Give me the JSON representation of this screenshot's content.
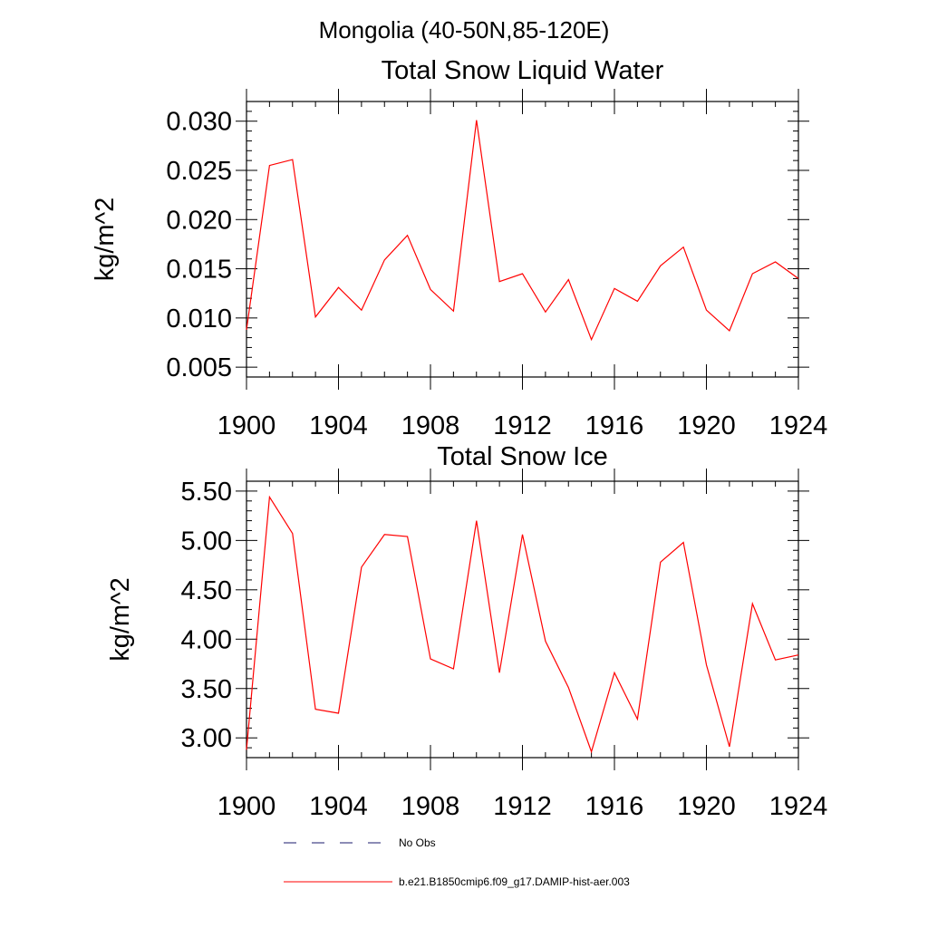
{
  "figure": {
    "title": "Mongolia (40-50N,85-120E)"
  },
  "colors": {
    "series": "#ff0000",
    "no_obs": "#1a1a6e",
    "axis": "#000000",
    "background": "#ffffff"
  },
  "legend": {
    "placement": "bottom",
    "items": [
      {
        "label": "No Obs",
        "style": "dashed"
      },
      {
        "label": "b.e21.B1850cmip6.f09_g17.DAMIP-hist-aer.003",
        "style": "solid"
      }
    ]
  },
  "chart_data": [
    {
      "type": "line",
      "title": "Total Snow Liquid Water",
      "xlabel": "",
      "ylabel": "kg/m^2",
      "xlim": [
        1900,
        1924
      ],
      "ylim": [
        0.004,
        0.032
      ],
      "grid": false,
      "xticks": [
        "1900",
        "1904",
        "1908",
        "1912",
        "1916",
        "1920",
        "1924"
      ],
      "yticks": [
        "0.005",
        "0.010",
        "0.015",
        "0.020",
        "0.025",
        "0.030"
      ],
      "series": [
        {
          "name": "b.e21.B1850cmip6.f09_g17.DAMIP-hist-aer.003",
          "x": [
            1900,
            1901,
            1902,
            1903,
            1904,
            1905,
            1906,
            1907,
            1908,
            1909,
            1910,
            1911,
            1912,
            1913,
            1914,
            1915,
            1916,
            1917,
            1918,
            1919,
            1920,
            1921,
            1922,
            1923,
            1924
          ],
          "values": [
            0.0088,
            0.0255,
            0.0261,
            0.0101,
            0.0131,
            0.0108,
            0.0159,
            0.0184,
            0.0129,
            0.0107,
            0.0301,
            0.0137,
            0.0145,
            0.0106,
            0.0139,
            0.0078,
            0.013,
            0.0117,
            0.0153,
            0.0172,
            0.0108,
            0.0087,
            0.0145,
            0.0157,
            0.014
          ]
        }
      ]
    },
    {
      "type": "line",
      "title": "Total Snow Ice",
      "xlabel": "",
      "ylabel": "kg/m^2",
      "xlim": [
        1900,
        1924
      ],
      "ylim": [
        2.8,
        5.6
      ],
      "grid": false,
      "xticks": [
        "1900",
        "1904",
        "1908",
        "1912",
        "1916",
        "1920",
        "1924"
      ],
      "yticks": [
        "3.00",
        "3.50",
        "4.00",
        "4.50",
        "5.00",
        "5.50"
      ],
      "series": [
        {
          "name": "b.e21.B1850cmip6.f09_g17.DAMIP-hist-aer.003",
          "x": [
            1900,
            1901,
            1902,
            1903,
            1904,
            1905,
            1906,
            1907,
            1908,
            1909,
            1910,
            1911,
            1912,
            1913,
            1914,
            1915,
            1916,
            1917,
            1918,
            1919,
            1920,
            1921,
            1922,
            1923,
            1924
          ],
          "values": [
            2.88,
            5.44,
            5.07,
            3.29,
            3.25,
            4.73,
            5.06,
            5.04,
            3.8,
            3.7,
            5.2,
            3.66,
            5.06,
            3.98,
            3.51,
            2.86,
            3.66,
            3.19,
            4.78,
            4.98,
            3.74,
            2.91,
            4.36,
            3.79,
            3.84
          ]
        }
      ]
    }
  ]
}
